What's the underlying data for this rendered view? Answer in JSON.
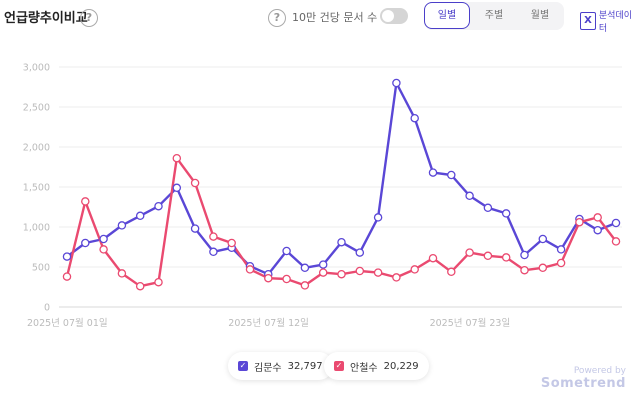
{
  "header": {
    "title": "언급량추이비교",
    "toggle_label": "10만 건당 문서 수",
    "period_tabs": [
      "일별",
      "주별",
      "월별"
    ],
    "active_period": "일별",
    "export_label": "분석데이터"
  },
  "legend": [
    {
      "name": "김문수",
      "total": "32,797",
      "color": "#5a47d6"
    },
    {
      "name": "안철수",
      "total": "20,229",
      "color": "#ea4a70"
    }
  ],
  "footer": {
    "powered_by": "Powered by",
    "brand": "Sometrend"
  },
  "chart_data": {
    "type": "line",
    "x": [
      "2025-07-01",
      "2025-07-02",
      "2025-07-03",
      "2025-07-04",
      "2025-07-05",
      "2025-07-06",
      "2025-07-07",
      "2025-07-08",
      "2025-07-09",
      "2025-07-10",
      "2025-07-11",
      "2025-07-12",
      "2025-07-13",
      "2025-07-14",
      "2025-07-15",
      "2025-07-16",
      "2025-07-17",
      "2025-07-18",
      "2025-07-19",
      "2025-07-20",
      "2025-07-21",
      "2025-07-22",
      "2025-07-23",
      "2025-07-24",
      "2025-07-25",
      "2025-07-26",
      "2025-07-27",
      "2025-07-28",
      "2025-07-29",
      "2025-07-30",
      "2025-07-31"
    ],
    "x_tick_labels": [
      "2025년 07월 01일",
      "2025년 07월 12일",
      "2025년 07월 23일"
    ],
    "x_tick_indices": [
      0,
      11,
      22
    ],
    "series": [
      {
        "name": "김문수",
        "color": "#5a47d6",
        "values": [
          630,
          800,
          850,
          1020,
          1140,
          1260,
          1490,
          980,
          690,
          740,
          510,
          410,
          700,
          490,
          530,
          810,
          680,
          1120,
          2800,
          2360,
          1680,
          1650,
          1390,
          1240,
          1170,
          650,
          850,
          720,
          1100,
          960,
          1050
        ]
      },
      {
        "name": "안철수",
        "color": "#ea4a70",
        "values": [
          380,
          1320,
          720,
          420,
          260,
          310,
          1860,
          1550,
          880,
          800,
          470,
          360,
          350,
          270,
          430,
          410,
          450,
          430,
          370,
          470,
          610,
          440,
          680,
          640,
          620,
          460,
          490,
          550,
          1060,
          1120,
          820
        ]
      }
    ],
    "y_ticks": [
      "0",
      "500",
      "1,000",
      "1,500",
      "2,000",
      "2,500",
      "3,000"
    ],
    "ylim": [
      0,
      3000
    ],
    "grid": true
  }
}
